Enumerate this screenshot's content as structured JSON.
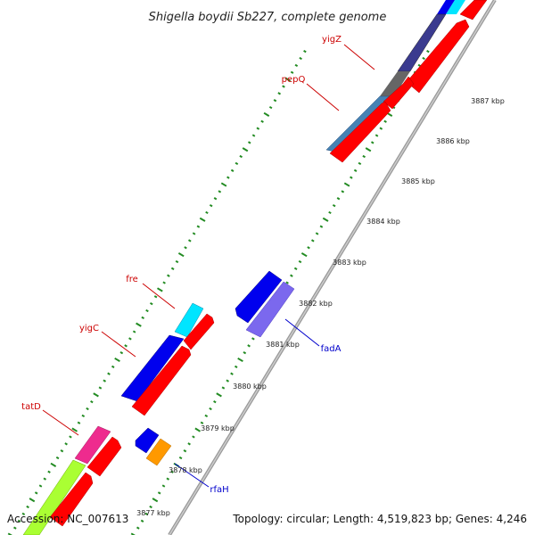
{
  "title": "Shigella boydii Sb227, complete genome",
  "footer": {
    "accession": "Accession: NC_007613",
    "topology": "Topology: circular; Length: 4,519,823 bp; Genes: 4,246"
  },
  "kbp_labels": [
    "3877 kbp",
    "3878 kbp",
    "3879 kbp",
    "3880 kbp",
    "3881 kbp",
    "3882 kbp",
    "3883 kbp",
    "3884 kbp",
    "3885 kbp",
    "3886 kbp",
    "3887 kbp"
  ],
  "genes": {
    "yigZ": "yigZ",
    "pepQ": "pepQ",
    "fre": "fre",
    "yigC": "yigC",
    "tatD": "tatD",
    "fadA": "fadA",
    "rfaH": "rfaH"
  },
  "colors": {
    "cds_red": "#ff0000",
    "blue": "#0000ee",
    "navy": "#3b3b8f",
    "steel": "#4682b4",
    "grey": "#666666",
    "cyan": "#00e5ff",
    "magenta": "#ee2b8e",
    "lime": "#aaff33",
    "lavender": "#7b68ee",
    "orange": "#ff9900",
    "tick_green": "#228b22"
  }
}
